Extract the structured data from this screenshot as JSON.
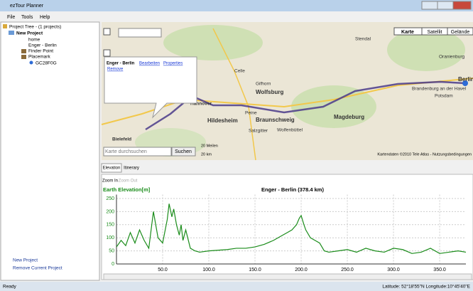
{
  "window": {
    "title": "ezTour Planner",
    "menu": [
      "File",
      "Tools",
      "Help"
    ]
  },
  "tree": {
    "root": "Project Tree - (1 projects)",
    "project": "New Project",
    "items": [
      "home",
      "Enger - Berlin",
      "Finder Point",
      "Placemark"
    ],
    "placemark_child": "GC28F0G"
  },
  "left_actions": [
    "New Project",
    "Remove Current Project"
  ],
  "map": {
    "buttons": [
      "Karte",
      "Satellit",
      "Gelände"
    ],
    "popup": {
      "title": "Enger - Berlin",
      "links": [
        "Bearbeiten",
        "Properties",
        "Remove"
      ]
    },
    "search_placeholder": "Karte durchsuchen",
    "search_button": "Suchen",
    "scale": [
      "20 Meilen",
      "20 km"
    ],
    "copyright": "Kartendaten ©2010 Tele Atlas - Nutzungsbedingungen",
    "places": [
      "Celle",
      "Gifhorn",
      "Wolfsburg",
      "Hannover",
      "Peine",
      "Braunschweig",
      "Hildesheim",
      "Salzgitter",
      "Wolfenbüttel",
      "Magdeburg",
      "Bielefeld",
      "Brandenburg an der Havel",
      "Potsdam",
      "Berlin",
      "Oranienburg",
      "Stendal"
    ]
  },
  "tabs": [
    "Elevation",
    "Itinerary"
  ],
  "chart_buttons": [
    "Zoom In",
    "Zoom Out"
  ],
  "chart_data": {
    "type": "line",
    "title": "Enger - Berlin (378.4 km)",
    "y_label": "Earth Elevation[m]",
    "x": [
      0,
      5,
      10,
      15,
      20,
      25,
      30,
      35,
      40,
      45,
      50,
      55,
      57,
      60,
      62,
      65,
      68,
      70,
      72,
      75,
      80,
      85,
      90,
      100,
      120,
      130,
      140,
      150,
      160,
      170,
      180,
      185,
      190,
      195,
      198,
      200,
      203,
      205,
      210,
      215,
      220,
      225,
      230,
      240,
      250,
      260,
      270,
      280,
      290,
      300,
      310,
      320,
      330,
      340,
      350,
      360,
      370,
      378.4
    ],
    "series": [
      {
        "name": "Elevation",
        "color": "#1a8c1a",
        "values": [
          65,
          90,
          70,
          120,
          80,
          130,
          90,
          60,
          200,
          100,
          80,
          170,
          230,
          180,
          210,
          150,
          110,
          150,
          90,
          130,
          60,
          50,
          45,
          50,
          55,
          60,
          60,
          65,
          75,
          90,
          110,
          120,
          130,
          150,
          175,
          185,
          150,
          130,
          100,
          90,
          80,
          50,
          45,
          50,
          55,
          45,
          60,
          50,
          45,
          60,
          55,
          40,
          45,
          60,
          40,
          45,
          50,
          45
        ]
      }
    ],
    "xlim": [
      0,
      378.4
    ],
    "ylim": [
      0,
      265
    ],
    "xticks": [
      {
        "value": 50,
        "label": "50.0"
      },
      {
        "value": 100,
        "label": "100.0"
      },
      {
        "value": 150,
        "label": "150.0"
      },
      {
        "value": 200,
        "label": "200.0"
      },
      {
        "value": 250,
        "label": "250.0"
      },
      {
        "value": 300,
        "label": "300.0"
      },
      {
        "value": 350,
        "label": "350.0"
      }
    ],
    "yticks": [
      0,
      50,
      100,
      150,
      200,
      250
    ],
    "grid": true
  },
  "status": {
    "left": "Ready",
    "right": "Latitude: 52°18'55\"N Longitude:10°45'40\"E"
  }
}
